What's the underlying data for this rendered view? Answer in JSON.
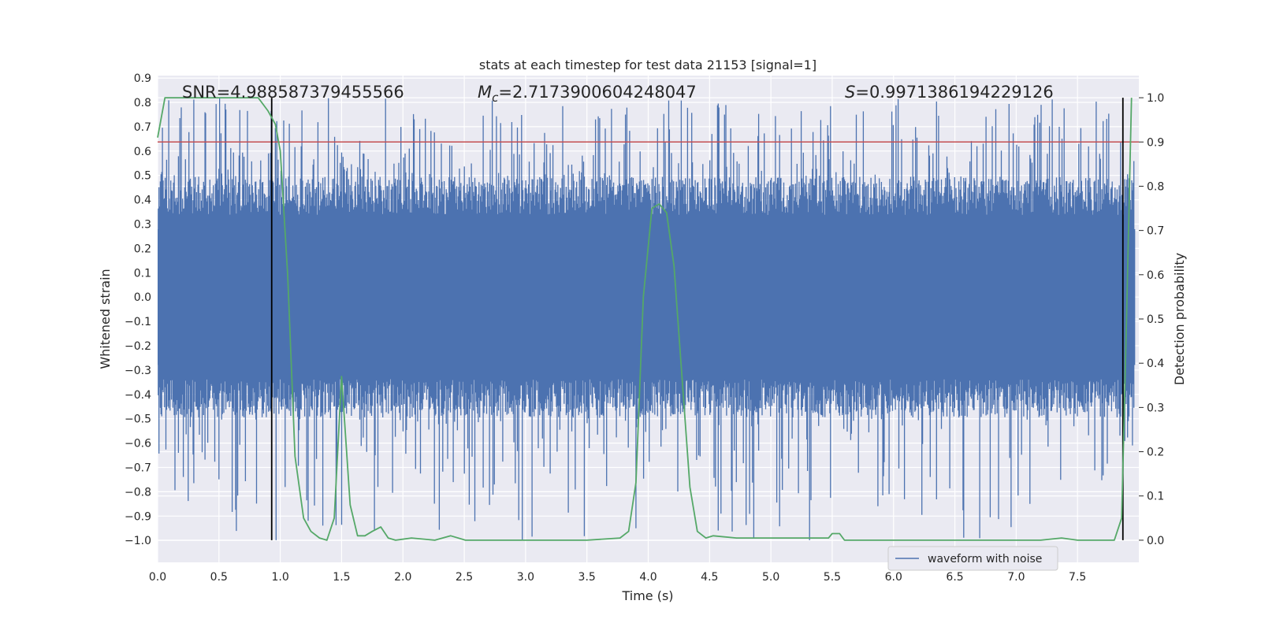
{
  "chart_data": {
    "type": "line",
    "title": "stats at each timestep for test data 21153 [signal=1]",
    "xlabel": "Time (s)",
    "ylabel": "Whitened strain",
    "y2label": "Detection probability",
    "xlim": [
      0.0,
      8.0
    ],
    "ylim": [
      -1.09,
      0.91
    ],
    "y2lim": [
      -0.05,
      1.05
    ],
    "xticks": [
      "0.0",
      "0.5",
      "1.0",
      "1.5",
      "2.0",
      "2.5",
      "3.0",
      "3.5",
      "4.0",
      "4.5",
      "5.0",
      "5.5",
      "6.0",
      "6.5",
      "7.0",
      "7.5"
    ],
    "yticks": [
      "0.9",
      "0.8",
      "0.7",
      "0.6",
      "0.5",
      "0.4",
      "0.3",
      "0.2",
      "0.1",
      "0.0",
      "−0.1",
      "−0.2",
      "−0.3",
      "−0.4",
      "−0.5",
      "−0.6",
      "−0.7",
      "−0.8",
      "−0.9",
      "−1.0"
    ],
    "y2ticks": [
      "1.0",
      "0.9",
      "0.8",
      "0.7",
      "0.6",
      "0.5",
      "0.4",
      "0.3",
      "0.2",
      "0.1",
      "0.0"
    ],
    "grid": true,
    "legend_position": "lower-right",
    "annotations": {
      "snr": "SNR=4.988587379455566",
      "mc_symbol": "M",
      "mc_sub": "c",
      "mc_value": "=2.7173900604248047",
      "s_symbol": "S",
      "s_value": "=0.9971386194229126"
    },
    "series": [
      {
        "name": "waveform with noise",
        "axis": "left",
        "color": "#4c72b0",
        "style": "noise",
        "typical_range": [
          -0.45,
          0.45
        ],
        "peak_envelope": [
          -1.0,
          0.82
        ]
      },
      {
        "axis": "right",
        "color": "#55a868",
        "x": [
          0.0,
          0.06,
          0.5,
          0.82,
          0.9,
          0.96,
          1.0,
          1.06,
          1.12,
          1.19,
          1.25,
          1.32,
          1.38,
          1.44,
          1.5,
          1.57,
          1.63,
          1.69,
          1.75,
          1.82,
          1.88,
          1.94,
          2.07,
          2.26,
          2.39,
          2.51,
          2.64,
          2.77,
          3.0,
          3.5,
          3.77,
          3.84,
          3.9,
          3.96,
          4.03,
          4.09,
          4.15,
          4.21,
          4.28,
          4.34,
          4.4,
          4.47,
          4.53,
          4.72,
          5.0,
          5.2,
          5.47,
          5.5,
          5.56,
          5.6,
          5.7,
          6.0,
          6.5,
          7.0,
          7.2,
          7.37,
          7.5,
          7.6,
          7.8,
          7.86,
          7.9,
          7.94
        ],
        "values": [
          0.91,
          1.0,
          1.0,
          1.0,
          0.97,
          0.94,
          0.88,
          0.6,
          0.19,
          0.05,
          0.02,
          0.005,
          0.0,
          0.05,
          0.37,
          0.08,
          0.01,
          0.01,
          0.02,
          0.03,
          0.005,
          0.0,
          0.005,
          0.0,
          0.01,
          0.0,
          0.0,
          0.0,
          0.0,
          0.0,
          0.005,
          0.02,
          0.13,
          0.55,
          0.75,
          0.76,
          0.74,
          0.62,
          0.35,
          0.12,
          0.02,
          0.005,
          0.01,
          0.005,
          0.005,
          0.005,
          0.005,
          0.015,
          0.015,
          0.0,
          0.0,
          0.0,
          0.0,
          0.0,
          0.0,
          0.005,
          0.0,
          0.0,
          0.0,
          0.05,
          0.5,
          1.0
        ]
      },
      {
        "axis": "right",
        "style": "threshold",
        "color": "#c44e52",
        "value": 0.9
      }
    ],
    "vlines": [
      {
        "x": 0.93,
        "color": "#000000",
        "y2_range": [
          0.0,
          1.0
        ]
      },
      {
        "x": 7.87,
        "color": "#000000",
        "y2_range": [
          0.0,
          1.0
        ]
      }
    ]
  }
}
